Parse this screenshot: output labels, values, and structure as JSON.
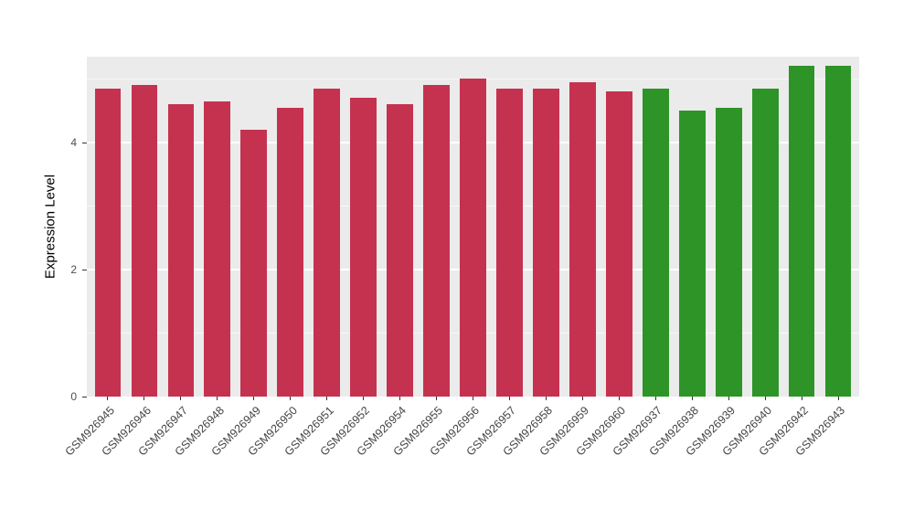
{
  "chart_data": {
    "type": "bar",
    "title": "",
    "xlabel": "",
    "ylabel": "Expression Level",
    "ylim": [
      0,
      5.35
    ],
    "yticks": [
      0,
      2,
      4
    ],
    "grid_major": [
      0,
      2,
      4
    ],
    "grid_minor": [
      1,
      3,
      5
    ],
    "legend": "none",
    "panel_background": "#EBEBEB",
    "gridline_color": "#FFFFFF",
    "categories": [
      "GSM926945",
      "GSM926946",
      "GSM926947",
      "GSM926948",
      "GSM926949",
      "GSM926950",
      "GSM926951",
      "GSM926952",
      "GSM926954",
      "GSM926955",
      "GSM926956",
      "GSM926957",
      "GSM926958",
      "GSM926959",
      "GSM926960",
      "GSM926937",
      "GSM926938",
      "GSM926939",
      "GSM926940",
      "GSM926942",
      "GSM926943"
    ],
    "values": [
      4.85,
      4.9,
      4.6,
      4.65,
      4.2,
      4.55,
      4.85,
      4.7,
      4.6,
      4.9,
      5.0,
      4.85,
      4.85,
      4.95,
      4.8,
      4.85,
      4.5,
      4.55,
      4.85,
      5.2,
      5.2
    ],
    "bar_colors": [
      "#C53250",
      "#C53250",
      "#C53250",
      "#C53250",
      "#C53250",
      "#C53250",
      "#C53250",
      "#C53250",
      "#C53250",
      "#C53250",
      "#C53250",
      "#C53250",
      "#C53250",
      "#C53250",
      "#C53250",
      "#2E9428",
      "#2E9428",
      "#2E9428",
      "#2E9428",
      "#2E9428",
      "#2E9428"
    ],
    "group_colors": {
      "red_group": "#C53250",
      "green_group": "#2E9428"
    }
  }
}
